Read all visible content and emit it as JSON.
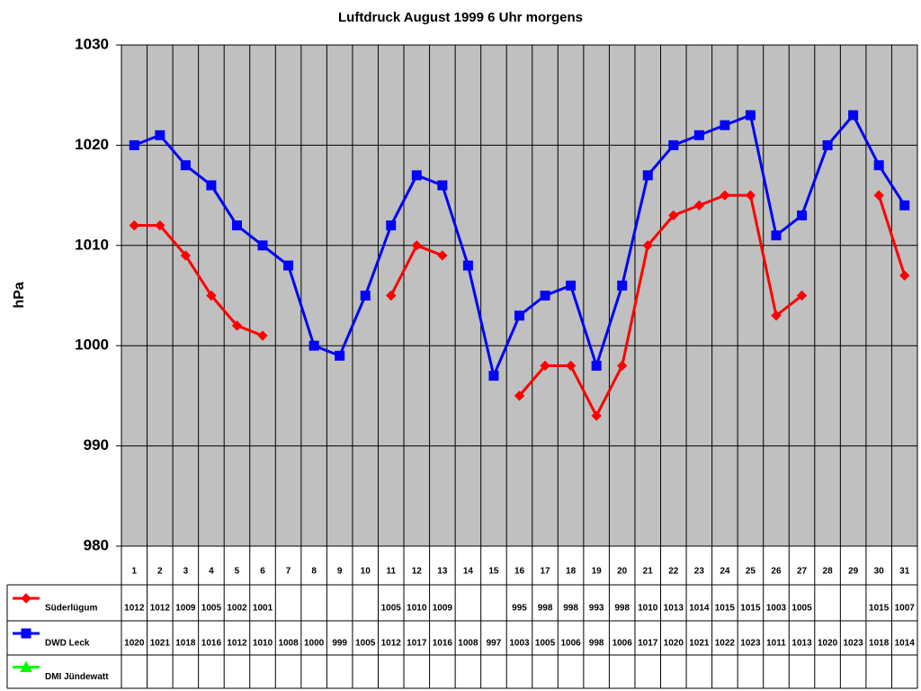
{
  "chart_data": {
    "type": "line",
    "title": "Luftdruck August 1999 6 Uhr morgens",
    "y_label": "hPa",
    "categories": [
      "1",
      "2",
      "3",
      "4",
      "5",
      "6",
      "7",
      "8",
      "9",
      "10",
      "11",
      "12",
      "13",
      "14",
      "15",
      "16",
      "17",
      "18",
      "19",
      "20",
      "21",
      "22",
      "23",
      "24",
      "25",
      "26",
      "27",
      "28",
      "29",
      "30",
      "31"
    ],
    "series": [
      {
        "name": "Süderlügum",
        "color": "#ff0000",
        "marker": "diamond",
        "values": [
          1012,
          1012,
          1009,
          1005,
          1002,
          1001,
          null,
          null,
          null,
          null,
          1005,
          1010,
          1009,
          null,
          null,
          995,
          998,
          998,
          993,
          998,
          1010,
          1013,
          1014,
          1015,
          1015,
          1003,
          1005,
          null,
          null,
          1015,
          1007
        ]
      },
      {
        "name": "DWD Leck",
        "color": "#0000ff",
        "marker": "square",
        "values": [
          1020,
          1021,
          1018,
          1016,
          1012,
          1010,
          1008,
          1000,
          999,
          1005,
          1012,
          1017,
          1016,
          1008,
          997,
          1003,
          1005,
          1006,
          998,
          1006,
          1017,
          1020,
          1021,
          1022,
          1023,
          1011,
          1013,
          1020,
          1023,
          1018,
          1014
        ]
      },
      {
        "name": "DMI Jündewatt",
        "color": "#00ff00",
        "marker": "triangle",
        "values": [
          null,
          null,
          null,
          null,
          null,
          null,
          null,
          null,
          null,
          null,
          null,
          null,
          null,
          null,
          null,
          null,
          null,
          null,
          null,
          null,
          null,
          null,
          null,
          null,
          null,
          null,
          null,
          null,
          null,
          null,
          null
        ]
      }
    ],
    "ylim": [
      980,
      1030
    ],
    "yticks": [
      980,
      990,
      1000,
      1010,
      1020,
      1030
    ],
    "grid": true,
    "data_table": true
  }
}
